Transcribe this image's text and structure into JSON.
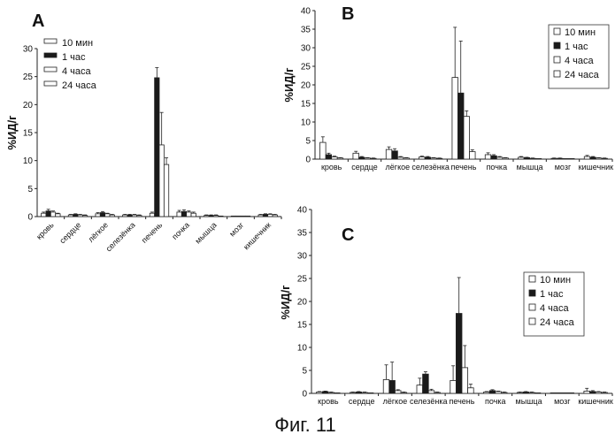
{
  "caption": "Фиг. 11",
  "legend_labels": [
    "10 мин",
    "1 час",
    "4 часа",
    "24 часа"
  ],
  "series_colors": {
    "10 мин": "#ffffff",
    "1 час": "#1a1a1a",
    "4 часа": "#ffffff",
    "24 часа": "#ffffff"
  },
  "chart_data": [
    {
      "type": "bar",
      "panel": "A",
      "ylabel": "%ИД/г",
      "ylim": [
        0,
        30
      ],
      "yticks": [
        "0",
        "5",
        "10",
        "15",
        "20",
        "25",
        "30"
      ],
      "categories": [
        "кровь",
        "сердце",
        "лёгкое",
        "селезёнка",
        "печень",
        "почка",
        "мышца",
        "мозг",
        "кишечник"
      ],
      "legend_position": "top-left",
      "series": [
        {
          "name": "10 мин",
          "values": [
            0.6,
            0.3,
            0.5,
            0.3,
            0.6,
            0.8,
            0.2,
            0.1,
            0.3
          ],
          "errors": [
            0.2,
            0.1,
            0.2,
            0.1,
            0.2,
            0.3,
            0.1,
            0.0,
            0.1
          ]
        },
        {
          "name": "1 час",
          "values": [
            1.0,
            0.4,
            0.7,
            0.3,
            24.8,
            0.9,
            0.2,
            0.1,
            0.4
          ],
          "errors": [
            0.3,
            0.1,
            0.2,
            0.1,
            1.8,
            0.3,
            0.1,
            0.0,
            0.1
          ]
        },
        {
          "name": "4 часа",
          "values": [
            0.8,
            0.3,
            0.5,
            0.3,
            12.8,
            0.8,
            0.2,
            0.1,
            0.4
          ],
          "errors": [
            0.2,
            0.1,
            0.1,
            0.1,
            5.8,
            0.2,
            0.1,
            0.0,
            0.1
          ]
        },
        {
          "name": "24 часа",
          "values": [
            0.5,
            0.2,
            0.3,
            0.2,
            9.3,
            0.6,
            0.1,
            0.1,
            0.3
          ],
          "errors": [
            0.1,
            0.1,
            0.1,
            0.1,
            1.2,
            0.2,
            0.0,
            0.0,
            0.1
          ]
        }
      ]
    },
    {
      "type": "bar",
      "panel": "B",
      "ylabel": "%ИД/г",
      "ylim": [
        0,
        40
      ],
      "yticks": [
        "0",
        "5",
        "10",
        "15",
        "20",
        "25",
        "30",
        "35",
        "40"
      ],
      "categories": [
        "кровь",
        "сердце",
        "лёгкое",
        "селезёнка",
        "печень",
        "почка",
        "мышца",
        "мозг",
        "кишечник"
      ],
      "legend_position": "top-right",
      "series": [
        {
          "name": "10 мин",
          "values": [
            4.5,
            1.6,
            2.6,
            0.6,
            22.0,
            1.2,
            0.5,
            0.2,
            0.7
          ],
          "errors": [
            1.5,
            0.5,
            0.7,
            0.2,
            13.5,
            0.5,
            0.2,
            0.1,
            0.3
          ]
        },
        {
          "name": "1 час",
          "values": [
            1.2,
            0.5,
            2.2,
            0.5,
            17.8,
            0.9,
            0.4,
            0.2,
            0.5
          ],
          "errors": [
            0.4,
            0.2,
            0.6,
            0.2,
            14.0,
            0.3,
            0.1,
            0.1,
            0.2
          ]
        },
        {
          "name": "4 часа",
          "values": [
            0.6,
            0.3,
            0.5,
            0.3,
            11.5,
            0.5,
            0.2,
            0.1,
            0.3
          ],
          "errors": [
            0.2,
            0.1,
            0.2,
            0.1,
            1.5,
            0.2,
            0.1,
            0.0,
            0.1
          ]
        },
        {
          "name": "24 часа",
          "values": [
            0.3,
            0.2,
            0.3,
            0.2,
            2.0,
            0.3,
            0.1,
            0.1,
            0.2
          ],
          "errors": [
            0.1,
            0.1,
            0.1,
            0.1,
            0.5,
            0.1,
            0.0,
            0.0,
            0.1
          ]
        }
      ]
    },
    {
      "type": "bar",
      "panel": "C",
      "ylabel": "%ИД/г",
      "ylim": [
        0,
        40
      ],
      "yticks": [
        "0",
        "5",
        "10",
        "15",
        "20",
        "25",
        "30",
        "35",
        "40"
      ],
      "categories": [
        "кровь",
        "сердце",
        "лёгкое",
        "селезёнка",
        "печень",
        "почка",
        "мышца",
        "мозг",
        "кишечник"
      ],
      "legend_position": "top-right",
      "series": [
        {
          "name": "10 мин",
          "values": [
            0.3,
            0.2,
            3.0,
            1.8,
            2.8,
            0.3,
            0.2,
            0.1,
            0.5
          ],
          "errors": [
            0.1,
            0.1,
            3.2,
            1.5,
            3.2,
            0.1,
            0.1,
            0.0,
            0.6
          ]
        },
        {
          "name": "1 час",
          "values": [
            0.4,
            0.3,
            2.8,
            4.2,
            17.4,
            0.6,
            0.3,
            0.1,
            0.4
          ],
          "errors": [
            0.1,
            0.1,
            4.0,
            0.5,
            7.8,
            0.2,
            0.1,
            0.0,
            0.2
          ]
        },
        {
          "name": "4 часа",
          "values": [
            0.2,
            0.2,
            0.6,
            0.6,
            5.6,
            0.4,
            0.2,
            0.1,
            0.3
          ],
          "errors": [
            0.1,
            0.1,
            0.2,
            0.3,
            4.8,
            0.1,
            0.1,
            0.0,
            0.1
          ]
        },
        {
          "name": "24 часа",
          "values": [
            0.1,
            0.1,
            0.2,
            0.2,
            1.2,
            0.2,
            0.1,
            0.0,
            0.2
          ],
          "errors": [
            0.0,
            0.0,
            0.1,
            0.1,
            0.8,
            0.1,
            0.0,
            0.0,
            0.1
          ]
        }
      ]
    }
  ]
}
